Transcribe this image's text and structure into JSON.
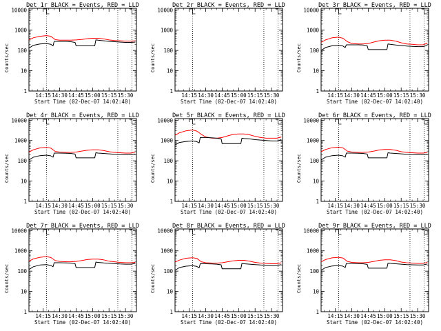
{
  "x_tick_labels": [
    "14:15",
    "14:30",
    "14:45",
    "15:00",
    "15:15",
    "15:30"
  ],
  "x_tick_minutes": [
    15,
    30,
    45,
    60,
    75,
    90
  ],
  "x_range_minutes": [
    2,
    100
  ],
  "xlabel": "Start Time (02-Dec-07 14:02:40)",
  "ylabel": "Counts/sec",
  "y_tick_labels": [
    "1",
    "10",
    "100",
    "1000",
    "10000"
  ],
  "y_tick_values": [
    1,
    10,
    100,
    1000,
    10000
  ],
  "y_range": [
    1,
    12000
  ],
  "y_scale": "log",
  "dotted_marker_minutes": [
    18,
    83,
    96
  ],
  "colors": {
    "events": "#000000",
    "lld": "#ff0000"
  },
  "chart_data": [
    {
      "type": "line",
      "title": "Det 1r BLACK = Events, RED = LLD",
      "series": [
        {
          "x": [
            2,
            6,
            12,
            18,
            22,
            26,
            30,
            36,
            40,
            45,
            50,
            55,
            60,
            65,
            70,
            75,
            80,
            85,
            90,
            95,
            99
          ],
          "y": [
            330,
            420,
            500,
            540,
            500,
            340,
            320,
            320,
            320,
            330,
            350,
            380,
            400,
            400,
            370,
            330,
            310,
            300,
            290,
            290,
            300
          ]
        },
        {
          "x": [
            2,
            6,
            12,
            18,
            22,
            24,
            25,
            30,
            36,
            40,
            44,
            45,
            50,
            55,
            60,
            62,
            63,
            65,
            70,
            75,
            80,
            85,
            90,
            95,
            99
          ],
          "y": [
            130,
            180,
            210,
            220,
            200,
            170,
            280,
            280,
            280,
            270,
            250,
            170,
            170,
            170,
            170,
            170,
            330,
            320,
            300,
            280,
            270,
            260,
            250,
            250,
            260
          ]
        }
      ]
    },
    {
      "type": "line",
      "title": "Det 2r BLACK = Events, RED = LLD",
      "series": []
    },
    {
      "type": "line",
      "title": "Det 3r BLACK = Events, RED = LLD",
      "series": [
        {
          "x": [
            2,
            6,
            12,
            18,
            22,
            26,
            30,
            36,
            40,
            45,
            50,
            55,
            60,
            65,
            70,
            75,
            80,
            85,
            90,
            95,
            99
          ],
          "y": [
            250,
            330,
            420,
            450,
            400,
            270,
            220,
            210,
            210,
            220,
            260,
            300,
            320,
            320,
            290,
            240,
            210,
            200,
            190,
            190,
            230
          ]
        },
        {
          "x": [
            2,
            6,
            12,
            18,
            22,
            24,
            25,
            30,
            36,
            40,
            44,
            45,
            50,
            55,
            60,
            62,
            63,
            65,
            70,
            75,
            80,
            85,
            90,
            95,
            99
          ],
          "y": [
            100,
            140,
            170,
            180,
            165,
            140,
            190,
            190,
            190,
            185,
            170,
            110,
            110,
            110,
            110,
            110,
            210,
            200,
            185,
            175,
            165,
            160,
            155,
            155,
            180
          ]
        }
      ]
    },
    {
      "type": "line",
      "title": "Det 4r BLACK = Events, RED = LLD",
      "series": [
        {
          "x": [
            2,
            6,
            12,
            18,
            22,
            26,
            30,
            36,
            40,
            45,
            50,
            55,
            60,
            65,
            70,
            75,
            80,
            85,
            90,
            95,
            99
          ],
          "y": [
            270,
            350,
            430,
            460,
            420,
            290,
            270,
            260,
            260,
            270,
            300,
            330,
            350,
            350,
            320,
            280,
            260,
            250,
            240,
            240,
            270
          ]
        },
        {
          "x": [
            2,
            6,
            12,
            18,
            22,
            24,
            25,
            30,
            36,
            40,
            44,
            45,
            50,
            55,
            60,
            62,
            63,
            65,
            70,
            75,
            80,
            85,
            90,
            95,
            99
          ],
          "y": [
            110,
            150,
            180,
            190,
            175,
            150,
            240,
            240,
            235,
            230,
            215,
            140,
            140,
            140,
            140,
            140,
            250,
            240,
            230,
            220,
            210,
            205,
            200,
            200,
            215
          ]
        }
      ]
    },
    {
      "type": "line",
      "title": "Det 5r BLACK = Events, RED = LLD",
      "series": [
        {
          "x": [
            2,
            6,
            12,
            18,
            22,
            26,
            30,
            36,
            40,
            45,
            50,
            55,
            60,
            65,
            70,
            75,
            80,
            85,
            90,
            95,
            99
          ],
          "y": [
            1800,
            2400,
            3000,
            3300,
            2900,
            2000,
            1500,
            1300,
            1300,
            1400,
            1700,
            2000,
            2100,
            2100,
            1900,
            1600,
            1400,
            1300,
            1300,
            1300,
            1500
          ]
        },
        {
          "x": [
            2,
            6,
            12,
            18,
            22,
            24,
            25,
            30,
            36,
            40,
            44,
            45,
            50,
            55,
            60,
            62,
            63,
            65,
            70,
            75,
            80,
            85,
            90,
            95,
            99
          ],
          "y": [
            600,
            800,
            900,
            950,
            880,
            760,
            1400,
            1400,
            1350,
            1300,
            1200,
            700,
            700,
            700,
            700,
            700,
            1300,
            1250,
            1200,
            1100,
            1050,
            1000,
            950,
            950,
            1100
          ]
        }
      ]
    },
    {
      "type": "line",
      "title": "Det 6r BLACK = Events, RED = LLD",
      "series": [
        {
          "x": [
            2,
            6,
            12,
            18,
            22,
            26,
            30,
            36,
            40,
            45,
            50,
            55,
            60,
            65,
            70,
            75,
            80,
            85,
            90,
            95,
            99
          ],
          "y": [
            280,
            360,
            440,
            470,
            430,
            300,
            270,
            260,
            260,
            270,
            300,
            340,
            360,
            360,
            330,
            280,
            260,
            250,
            240,
            240,
            260
          ]
        },
        {
          "x": [
            2,
            6,
            12,
            18,
            22,
            24,
            25,
            30,
            36,
            40,
            44,
            45,
            50,
            55,
            60,
            62,
            63,
            65,
            70,
            75,
            80,
            85,
            90,
            95,
            99
          ],
          "y": [
            110,
            150,
            180,
            190,
            175,
            150,
            240,
            240,
            235,
            230,
            215,
            140,
            140,
            140,
            140,
            140,
            250,
            240,
            230,
            220,
            210,
            205,
            200,
            200,
            215
          ]
        }
      ]
    },
    {
      "type": "line",
      "title": "Det 7r BLACK = Events, RED = LLD",
      "series": [
        {
          "x": [
            2,
            6,
            12,
            18,
            22,
            26,
            30,
            36,
            40,
            45,
            50,
            55,
            60,
            65,
            70,
            75,
            80,
            85,
            90,
            95,
            99
          ],
          "y": [
            310,
            400,
            480,
            520,
            470,
            330,
            300,
            290,
            290,
            300,
            330,
            370,
            390,
            390,
            360,
            310,
            290,
            270,
            260,
            260,
            270
          ]
        },
        {
          "x": [
            2,
            6,
            12,
            18,
            22,
            24,
            25,
            30,
            36,
            40,
            44,
            45,
            50,
            55,
            60,
            62,
            63,
            65,
            70,
            75,
            80,
            85,
            90,
            95,
            99
          ],
          "y": [
            120,
            165,
            200,
            210,
            190,
            165,
            260,
            260,
            255,
            250,
            235,
            150,
            150,
            150,
            150,
            150,
            280,
            270,
            255,
            245,
            235,
            225,
            220,
            220,
            240
          ]
        }
      ]
    },
    {
      "type": "line",
      "title": "Det 8r BLACK = Events, RED = LLD",
      "series": [
        {
          "x": [
            2,
            6,
            12,
            18,
            22,
            26,
            30,
            36,
            40,
            45,
            50,
            55,
            60,
            65,
            70,
            75,
            80,
            85,
            90,
            95,
            99
          ],
          "y": [
            280,
            350,
            430,
            460,
            420,
            290,
            260,
            250,
            250,
            260,
            290,
            320,
            340,
            340,
            310,
            270,
            250,
            240,
            230,
            230,
            260
          ]
        },
        {
          "x": [
            2,
            6,
            12,
            18,
            22,
            24,
            25,
            30,
            36,
            40,
            44,
            45,
            50,
            55,
            60,
            62,
            63,
            65,
            70,
            75,
            80,
            85,
            90,
            95,
            99
          ],
          "y": [
            110,
            150,
            175,
            185,
            170,
            145,
            230,
            230,
            225,
            220,
            205,
            130,
            130,
            130,
            130,
            130,
            240,
            230,
            220,
            210,
            200,
            195,
            190,
            190,
            210
          ]
        }
      ]
    },
    {
      "type": "line",
      "title": "Det 9r BLACK = Events, RED = LLD",
      "series": [
        {
          "x": [
            2,
            6,
            12,
            18,
            22,
            26,
            30,
            36,
            40,
            45,
            50,
            55,
            60,
            65,
            70,
            75,
            80,
            85,
            90,
            95,
            99
          ],
          "y": [
            290,
            370,
            450,
            480,
            440,
            300,
            270,
            260,
            260,
            270,
            300,
            340,
            360,
            360,
            330,
            280,
            260,
            250,
            240,
            240,
            270
          ]
        },
        {
          "x": [
            2,
            6,
            12,
            18,
            22,
            24,
            25,
            30,
            36,
            40,
            44,
            45,
            50,
            55,
            60,
            62,
            63,
            65,
            70,
            75,
            80,
            85,
            90,
            95,
            99
          ],
          "y": [
            110,
            150,
            180,
            190,
            175,
            150,
            240,
            240,
            235,
            230,
            215,
            140,
            140,
            140,
            140,
            140,
            250,
            240,
            230,
            220,
            210,
            205,
            200,
            200,
            225
          ]
        }
      ]
    }
  ]
}
